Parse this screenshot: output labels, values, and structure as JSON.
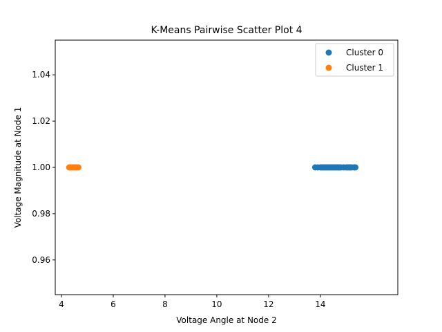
{
  "chart_data": {
    "type": "scatter",
    "title": "K-Means Pairwise Scatter Plot 4",
    "xlabel": "Voltage Angle at Node 2",
    "ylabel": "Voltage Magnitude at Node 1",
    "xlim": [
      3.76,
      16.99
    ],
    "ylim": [
      0.945,
      1.055
    ],
    "xticks": [
      4,
      6,
      8,
      10,
      12,
      14
    ],
    "xtick_labels": [
      "4",
      "6",
      "8",
      "10",
      "12",
      "14"
    ],
    "yticks": [
      0.96,
      0.98,
      1.0,
      1.02,
      1.04
    ],
    "ytick_labels": [
      "0.96",
      "0.98",
      "1.00",
      "1.02",
      "1.04"
    ],
    "grid": false,
    "legend_position": "top-right",
    "series": [
      {
        "name": "Cluster 0",
        "color": "#1f77b4",
        "x": [
          13.8,
          13.9,
          14.0,
          14.05,
          14.1,
          14.15,
          14.2,
          14.25,
          14.3,
          14.35,
          14.4,
          14.45,
          14.5,
          14.55,
          14.6,
          14.65,
          14.7,
          14.75,
          14.8,
          14.9,
          15.0,
          15.05,
          15.1,
          15.15,
          15.2,
          15.3,
          15.35
        ],
        "y": [
          1.0,
          1.0,
          1.0,
          1.0,
          1.0,
          1.0,
          1.0,
          1.0,
          1.0,
          1.0,
          1.0,
          1.0,
          1.0,
          1.0,
          1.0,
          1.0,
          1.0,
          1.0,
          1.0,
          1.0,
          1.0,
          1.0,
          1.0,
          1.0,
          1.0,
          1.0,
          1.0
        ]
      },
      {
        "name": "Cluster 1",
        "color": "#ff7f0e",
        "x": [
          4.3,
          4.35,
          4.4,
          4.45,
          4.5,
          4.55,
          4.6,
          4.65
        ],
        "y": [
          1.0,
          1.0,
          1.0,
          1.0,
          1.0,
          1.0,
          1.0,
          1.0
        ]
      }
    ]
  }
}
